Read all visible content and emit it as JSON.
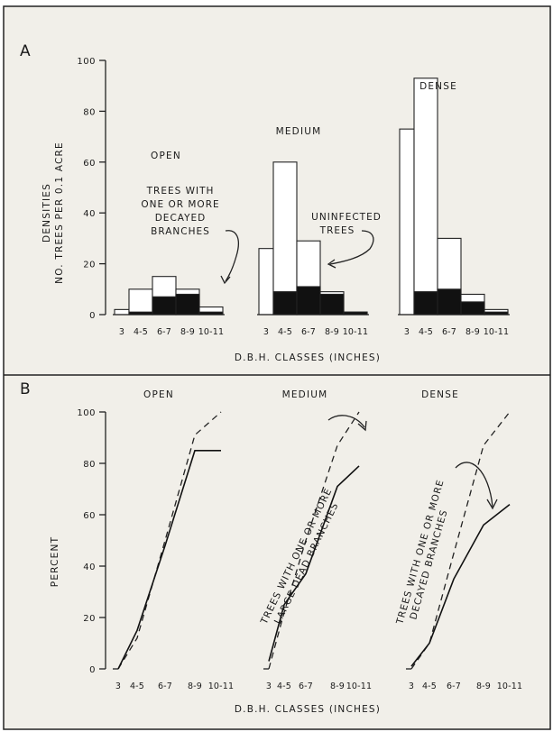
{
  "chart_data": [
    {
      "panel_label": "A",
      "type": "bar",
      "stacked": true,
      "ylabel": "DENSITIES",
      "ylabel2": "NO. TREES PER 0.1 ACRE",
      "xlabel": "D.B.H. CLASSES  (INCHES)",
      "yticks": [
        "0",
        "20",
        "40",
        "60",
        "80",
        "100"
      ],
      "ylim": [
        0,
        100
      ],
      "categories": [
        "3",
        "4-5",
        "6-7",
        "8-9",
        "10-11"
      ],
      "groups": [
        {
          "name": "OPEN",
          "infected": [
            0,
            1,
            7,
            8,
            1
          ],
          "total": [
            2,
            10,
            15,
            10,
            3
          ]
        },
        {
          "name": "MEDIUM",
          "infected": [
            0,
            9,
            11,
            8,
            1
          ],
          "total": [
            26,
            60,
            29,
            9,
            1
          ]
        },
        {
          "name": "DENSE",
          "infected": [
            0,
            9,
            10,
            5,
            1
          ],
          "total": [
            73,
            93,
            30,
            8,
            2
          ]
        }
      ],
      "annotations": {
        "decayed": [
          "TREES WITH",
          "ONE OR MORE",
          "DECAYED",
          "BRANCHES"
        ],
        "uninfected": [
          "UNINFECTED",
          "TREES"
        ]
      },
      "colors": {
        "infected": "#111111",
        "uninfected": "#ffffff"
      }
    },
    {
      "panel_label": "B",
      "type": "line",
      "ylabel": "PERCENT",
      "xlabel": "D.B.H. CLASSES  (INCHES)",
      "yticks": [
        "0",
        "20",
        "40",
        "60",
        "80",
        "100"
      ],
      "ylim": [
        0,
        100
      ],
      "categories": [
        "3",
        "4-5",
        "6-7",
        "8-9",
        "10-11"
      ],
      "groups": [
        {
          "name": "OPEN",
          "solid": [
            0,
            15,
            48,
            85,
            85
          ],
          "dashed": [
            0,
            12,
            50,
            91,
            100
          ]
        },
        {
          "name": "MEDIUM",
          "solid": [
            3,
            25,
            37,
            71,
            79
          ],
          "dashed": [
            0,
            22,
            50,
            87,
            100
          ]
        },
        {
          "name": "DENSE",
          "solid": [
            1,
            10,
            35,
            56,
            64
          ],
          "dashed": [
            0,
            10,
            45,
            87,
            100
          ]
        }
      ],
      "annotations": {
        "medium": [
          "TREES WITH ONE OR MORE",
          "LARGE DEAD BRANCHES"
        ],
        "dense": [
          "TREES WITH ONE OR MORE",
          "DECAYED BRANCHES"
        ]
      }
    }
  ]
}
